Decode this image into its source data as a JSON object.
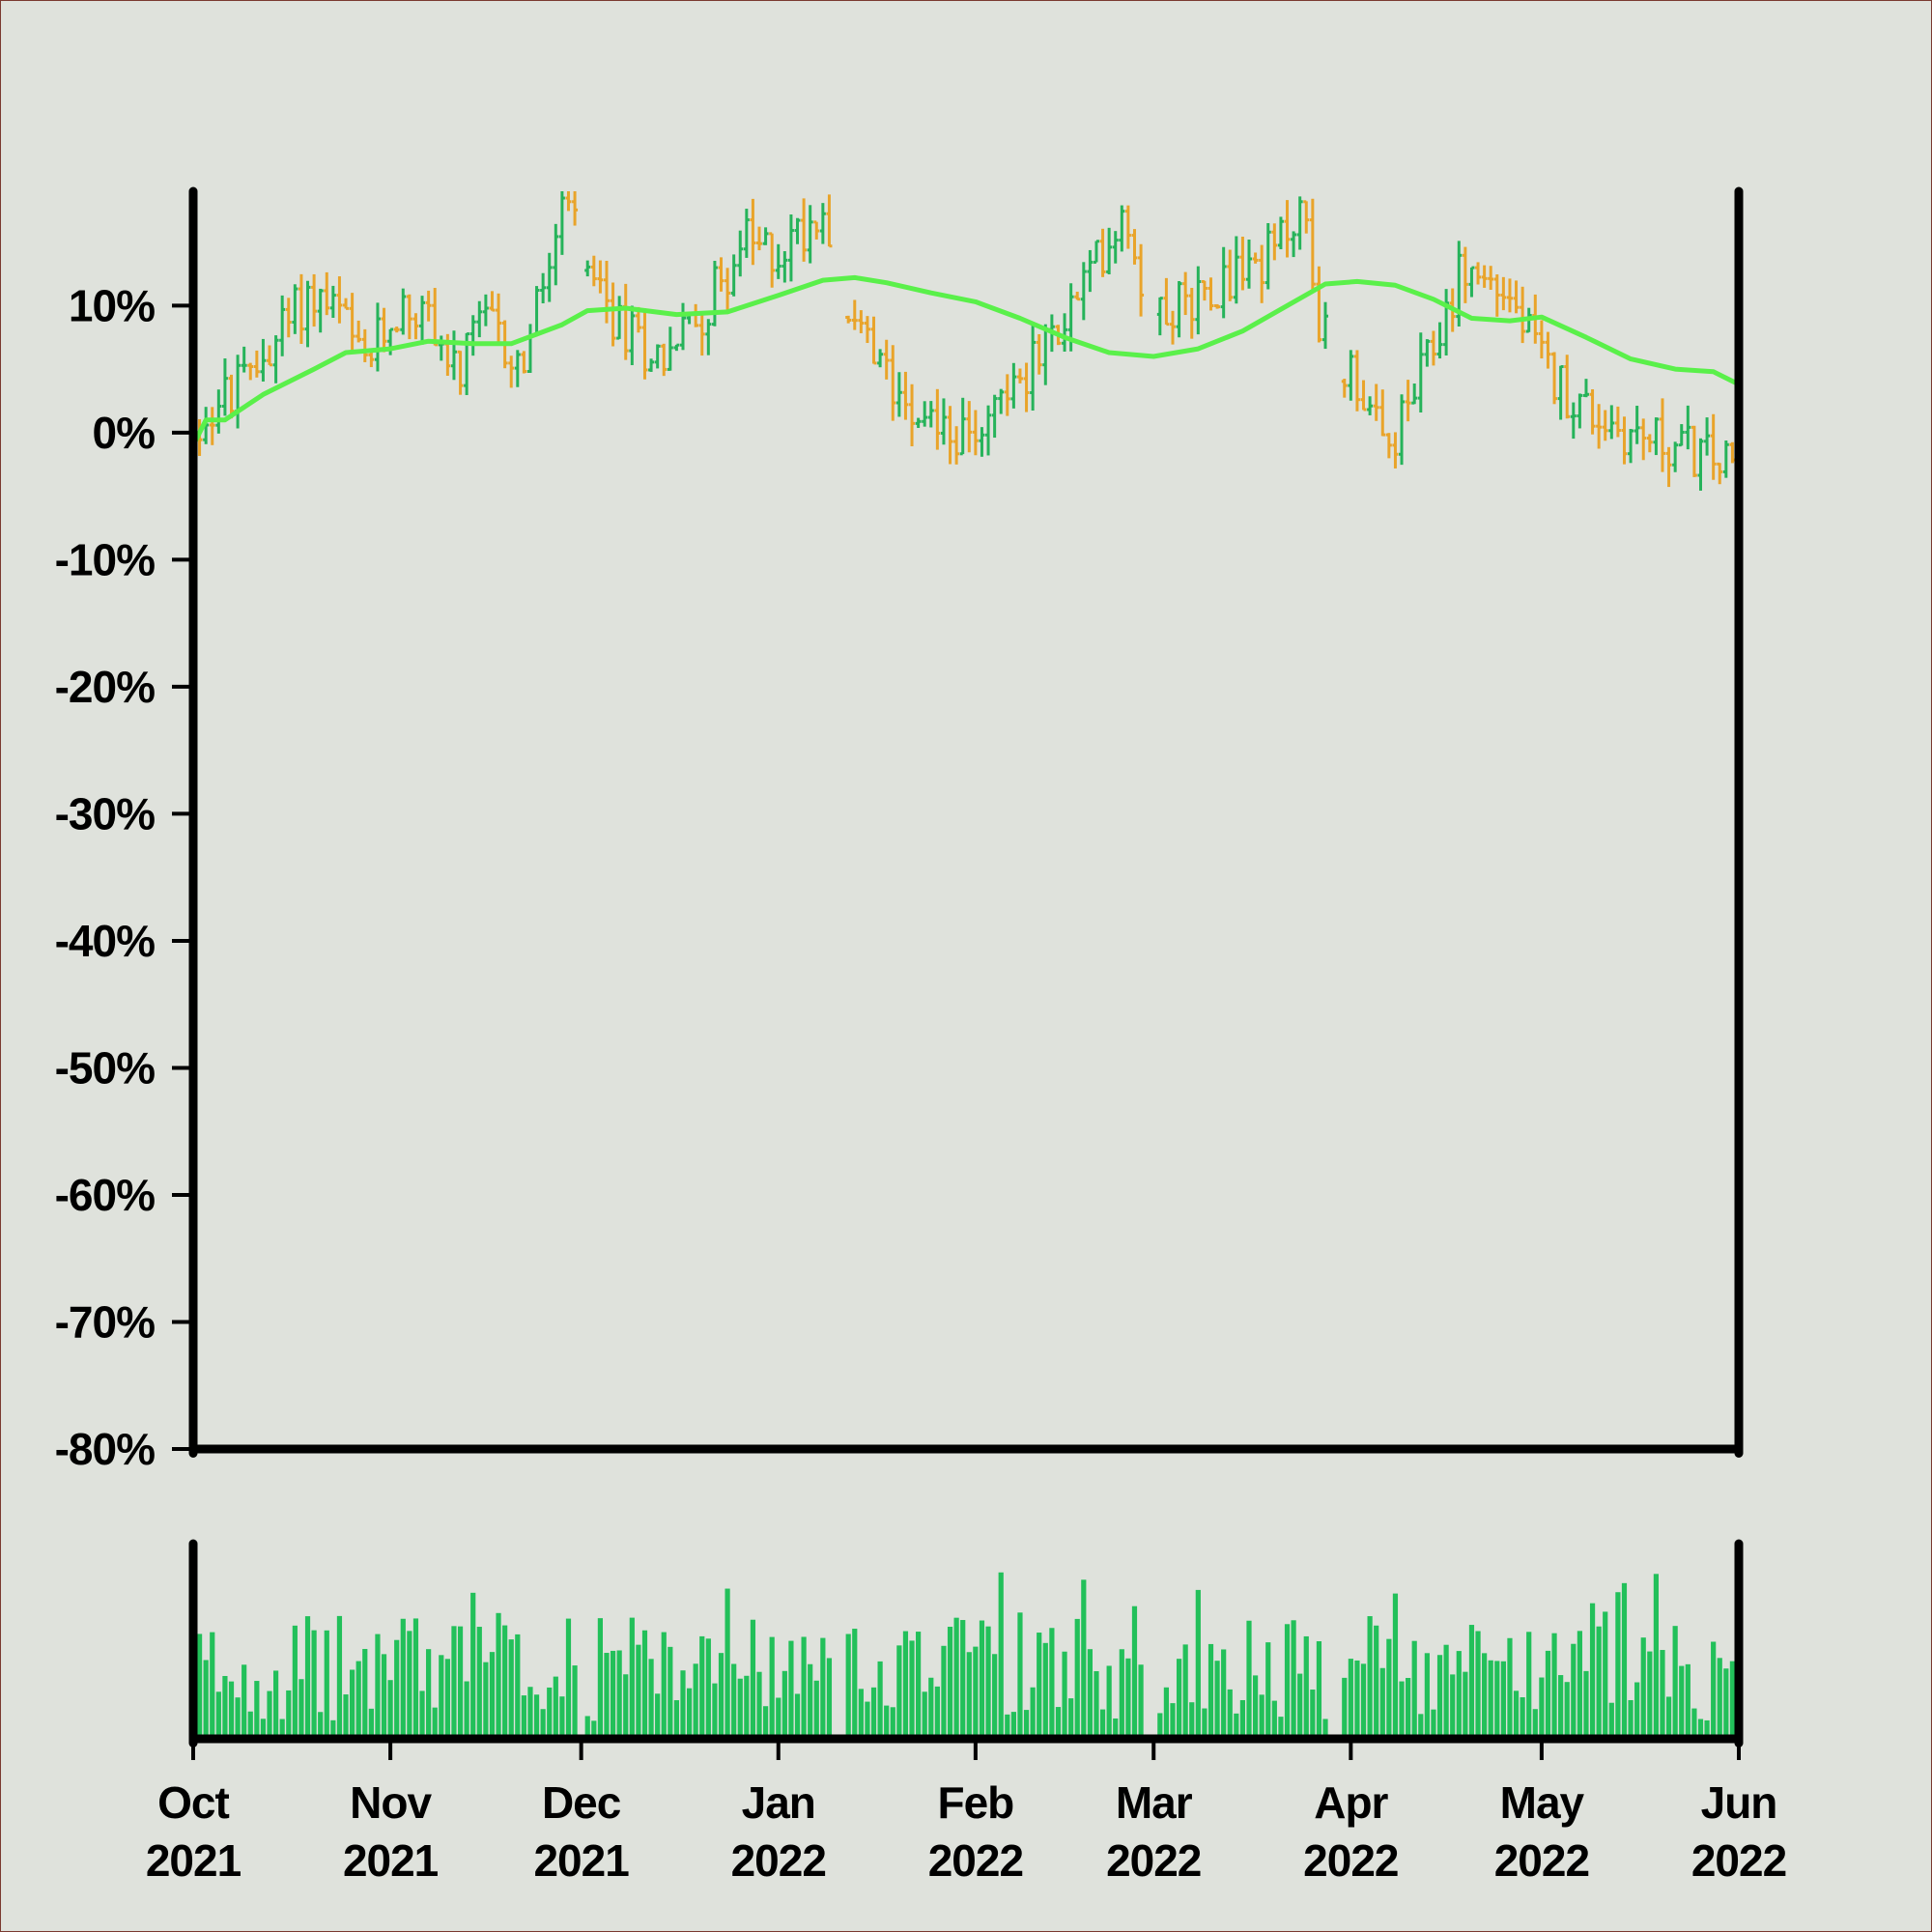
{
  "colors": {
    "background": "#dfe2dc",
    "axis": "#000000",
    "up_bar": "#26b35a",
    "down_bar": "#e9a42a",
    "moving_average": "#5af04a",
    "volume": "#22c05a"
  },
  "chart_data": {
    "type": "ohlc",
    "title": "",
    "xlabel": "",
    "ylabel": "",
    "y_format": "percent",
    "ylim": [
      -80,
      19
    ],
    "y_ticks": [
      {
        "value": 10,
        "label": "10%"
      },
      {
        "value": 0,
        "label": "0%"
      },
      {
        "value": -10,
        "label": "-10%"
      },
      {
        "value": -20,
        "label": "-20%"
      },
      {
        "value": -30,
        "label": "-30%"
      },
      {
        "value": -40,
        "label": "-40%"
      },
      {
        "value": -50,
        "label": "-50%"
      },
      {
        "value": -60,
        "label": "-60%"
      },
      {
        "value": -70,
        "label": "-70%"
      },
      {
        "value": -80,
        "label": "-80%"
      }
    ],
    "x_range": [
      "2021-10-01",
      "2022-06-01"
    ],
    "x_ticks": [
      {
        "date": "2021-10-01",
        "month": "Oct",
        "year": "2021"
      },
      {
        "date": "2021-11-01",
        "month": "Nov",
        "year": "2021"
      },
      {
        "date": "2021-12-01",
        "month": "Dec",
        "year": "2021"
      },
      {
        "date": "2022-01-01",
        "month": "Jan",
        "year": "2022"
      },
      {
        "date": "2022-02-01",
        "month": "Feb",
        "year": "2022"
      },
      {
        "date": "2022-03-01",
        "month": "Mar",
        "year": "2022"
      },
      {
        "date": "2022-04-01",
        "month": "Apr",
        "year": "2022"
      },
      {
        "date": "2022-05-01",
        "month": "May",
        "year": "2022"
      },
      {
        "date": "2022-06-01",
        "month": "Jun",
        "year": "2022"
      }
    ],
    "price_path": [
      [
        "2021-10-01",
        0
      ],
      [
        "2021-10-05",
        2
      ],
      [
        "2021-10-10",
        4
      ],
      [
        "2021-10-15",
        8
      ],
      [
        "2021-10-20",
        11
      ],
      [
        "2021-10-25",
        9
      ],
      [
        "2021-10-28",
        5
      ],
      [
        "2021-11-03",
        10
      ],
      [
        "2021-11-08",
        9
      ],
      [
        "2021-11-12",
        4
      ],
      [
        "2021-11-16",
        9
      ],
      [
        "2021-11-22",
        5
      ],
      [
        "2021-11-28",
        16
      ],
      [
        "2021-11-30",
        18
      ],
      [
        "2021-12-03",
        11
      ],
      [
        "2021-12-08",
        8
      ],
      [
        "2021-12-14",
        6
      ],
      [
        "2021-12-20",
        9
      ],
      [
        "2021-12-27",
        15
      ],
      [
        "2022-01-01",
        14
      ],
      [
        "2022-01-05",
        16
      ],
      [
        "2022-01-09",
        18
      ],
      [
        "2022-01-12",
        10
      ],
      [
        "2022-01-17",
        5
      ],
      [
        "2022-01-24",
        2
      ],
      [
        "2022-01-31",
        -1
      ],
      [
        "2022-02-05",
        3
      ],
      [
        "2022-02-12",
        6
      ],
      [
        "2022-02-18",
        11
      ],
      [
        "2022-02-25",
        18
      ],
      [
        "2022-02-28",
        11
      ],
      [
        "2022-03-05",
        10
      ],
      [
        "2022-03-12",
        12
      ],
      [
        "2022-03-20",
        14
      ],
      [
        "2022-03-25",
        18
      ],
      [
        "2022-03-27",
        10
      ],
      [
        "2022-03-30",
        5
      ],
      [
        "2022-04-02",
        5
      ],
      [
        "2022-04-07",
        -2
      ],
      [
        "2022-04-14",
        6
      ],
      [
        "2022-04-19",
        13
      ],
      [
        "2022-04-26",
        11
      ],
      [
        "2022-05-02",
        5
      ],
      [
        "2022-05-08",
        2
      ],
      [
        "2022-05-15",
        0
      ],
      [
        "2022-05-22",
        -1
      ],
      [
        "2022-05-28",
        -2
      ],
      [
        "2022-06-01",
        -3
      ]
    ],
    "moving_average": [
      [
        "2021-10-01",
        -1
      ],
      [
        "2021-10-03",
        1
      ],
      [
        "2021-10-06",
        1
      ],
      [
        "2021-10-12",
        3
      ],
      [
        "2021-10-20",
        5
      ],
      [
        "2021-10-25",
        6.3
      ],
      [
        "2021-11-01",
        6.6
      ],
      [
        "2021-11-07",
        7.2
      ],
      [
        "2021-11-14",
        7
      ],
      [
        "2021-11-20",
        7
      ],
      [
        "2021-11-28",
        8.5
      ],
      [
        "2021-12-02",
        9.6
      ],
      [
        "2021-12-08",
        9.8
      ],
      [
        "2021-12-16",
        9.3
      ],
      [
        "2021-12-24",
        9.5
      ],
      [
        "2022-01-01",
        10.8
      ],
      [
        "2022-01-08",
        12
      ],
      [
        "2022-01-13",
        12.2
      ],
      [
        "2022-01-18",
        11.8
      ],
      [
        "2022-01-25",
        11
      ],
      [
        "2022-02-01",
        10.3
      ],
      [
        "2022-02-08",
        9
      ],
      [
        "2022-02-15",
        7.5
      ],
      [
        "2022-02-22",
        6.3
      ],
      [
        "2022-03-01",
        6
      ],
      [
        "2022-03-08",
        6.6
      ],
      [
        "2022-03-15",
        8
      ],
      [
        "2022-03-22",
        10
      ],
      [
        "2022-03-28",
        11.7
      ],
      [
        "2022-04-02",
        11.9
      ],
      [
        "2022-04-08",
        11.6
      ],
      [
        "2022-04-14",
        10.5
      ],
      [
        "2022-04-20",
        9
      ],
      [
        "2022-04-26",
        8.8
      ],
      [
        "2022-05-01",
        9.1
      ],
      [
        "2022-05-08",
        7.5
      ],
      [
        "2022-05-15",
        5.8
      ],
      [
        "2022-05-22",
        5
      ],
      [
        "2022-05-28",
        4.8
      ],
      [
        "2022-06-01",
        3.8
      ]
    ],
    "gaps": [
      [
        "2021-12-01",
        "2021-12-02"
      ],
      [
        "2022-01-10",
        "2022-01-12"
      ],
      [
        "2022-02-28",
        "2022-03-02"
      ],
      [
        "2022-03-29",
        "2022-03-31"
      ]
    ],
    "volume_panel": {
      "type": "bar",
      "range": [
        0,
        100
      ],
      "note": "daily volume bars below price panel"
    }
  }
}
